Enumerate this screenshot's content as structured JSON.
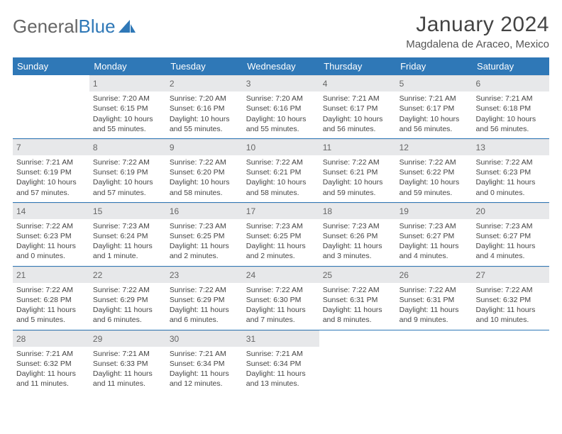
{
  "brand": {
    "word1": "General",
    "word2": "Blue"
  },
  "title": "January 2024",
  "location": "Magdalena de Araceo, Mexico",
  "colors": {
    "accent": "#2f78b7",
    "dayHeaderBg": "#e7e8ea",
    "text": "#444"
  },
  "weekdays": [
    "Sunday",
    "Monday",
    "Tuesday",
    "Wednesday",
    "Thursday",
    "Friday",
    "Saturday"
  ],
  "weeks": [
    [
      {
        "day": "",
        "sunrise": "",
        "sunset": "",
        "daylight1": "",
        "daylight2": ""
      },
      {
        "day": "1",
        "sunrise": "Sunrise: 7:20 AM",
        "sunset": "Sunset: 6:15 PM",
        "daylight1": "Daylight: 10 hours",
        "daylight2": "and 55 minutes."
      },
      {
        "day": "2",
        "sunrise": "Sunrise: 7:20 AM",
        "sunset": "Sunset: 6:16 PM",
        "daylight1": "Daylight: 10 hours",
        "daylight2": "and 55 minutes."
      },
      {
        "day": "3",
        "sunrise": "Sunrise: 7:20 AM",
        "sunset": "Sunset: 6:16 PM",
        "daylight1": "Daylight: 10 hours",
        "daylight2": "and 55 minutes."
      },
      {
        "day": "4",
        "sunrise": "Sunrise: 7:21 AM",
        "sunset": "Sunset: 6:17 PM",
        "daylight1": "Daylight: 10 hours",
        "daylight2": "and 56 minutes."
      },
      {
        "day": "5",
        "sunrise": "Sunrise: 7:21 AM",
        "sunset": "Sunset: 6:17 PM",
        "daylight1": "Daylight: 10 hours",
        "daylight2": "and 56 minutes."
      },
      {
        "day": "6",
        "sunrise": "Sunrise: 7:21 AM",
        "sunset": "Sunset: 6:18 PM",
        "daylight1": "Daylight: 10 hours",
        "daylight2": "and 56 minutes."
      }
    ],
    [
      {
        "day": "7",
        "sunrise": "Sunrise: 7:21 AM",
        "sunset": "Sunset: 6:19 PM",
        "daylight1": "Daylight: 10 hours",
        "daylight2": "and 57 minutes."
      },
      {
        "day": "8",
        "sunrise": "Sunrise: 7:22 AM",
        "sunset": "Sunset: 6:19 PM",
        "daylight1": "Daylight: 10 hours",
        "daylight2": "and 57 minutes."
      },
      {
        "day": "9",
        "sunrise": "Sunrise: 7:22 AM",
        "sunset": "Sunset: 6:20 PM",
        "daylight1": "Daylight: 10 hours",
        "daylight2": "and 58 minutes."
      },
      {
        "day": "10",
        "sunrise": "Sunrise: 7:22 AM",
        "sunset": "Sunset: 6:21 PM",
        "daylight1": "Daylight: 10 hours",
        "daylight2": "and 58 minutes."
      },
      {
        "day": "11",
        "sunrise": "Sunrise: 7:22 AM",
        "sunset": "Sunset: 6:21 PM",
        "daylight1": "Daylight: 10 hours",
        "daylight2": "and 59 minutes."
      },
      {
        "day": "12",
        "sunrise": "Sunrise: 7:22 AM",
        "sunset": "Sunset: 6:22 PM",
        "daylight1": "Daylight: 10 hours",
        "daylight2": "and 59 minutes."
      },
      {
        "day": "13",
        "sunrise": "Sunrise: 7:22 AM",
        "sunset": "Sunset: 6:23 PM",
        "daylight1": "Daylight: 11 hours",
        "daylight2": "and 0 minutes."
      }
    ],
    [
      {
        "day": "14",
        "sunrise": "Sunrise: 7:22 AM",
        "sunset": "Sunset: 6:23 PM",
        "daylight1": "Daylight: 11 hours",
        "daylight2": "and 0 minutes."
      },
      {
        "day": "15",
        "sunrise": "Sunrise: 7:23 AM",
        "sunset": "Sunset: 6:24 PM",
        "daylight1": "Daylight: 11 hours",
        "daylight2": "and 1 minute."
      },
      {
        "day": "16",
        "sunrise": "Sunrise: 7:23 AM",
        "sunset": "Sunset: 6:25 PM",
        "daylight1": "Daylight: 11 hours",
        "daylight2": "and 2 minutes."
      },
      {
        "day": "17",
        "sunrise": "Sunrise: 7:23 AM",
        "sunset": "Sunset: 6:25 PM",
        "daylight1": "Daylight: 11 hours",
        "daylight2": "and 2 minutes."
      },
      {
        "day": "18",
        "sunrise": "Sunrise: 7:23 AM",
        "sunset": "Sunset: 6:26 PM",
        "daylight1": "Daylight: 11 hours",
        "daylight2": "and 3 minutes."
      },
      {
        "day": "19",
        "sunrise": "Sunrise: 7:23 AM",
        "sunset": "Sunset: 6:27 PM",
        "daylight1": "Daylight: 11 hours",
        "daylight2": "and 4 minutes."
      },
      {
        "day": "20",
        "sunrise": "Sunrise: 7:23 AM",
        "sunset": "Sunset: 6:27 PM",
        "daylight1": "Daylight: 11 hours",
        "daylight2": "and 4 minutes."
      }
    ],
    [
      {
        "day": "21",
        "sunrise": "Sunrise: 7:22 AM",
        "sunset": "Sunset: 6:28 PM",
        "daylight1": "Daylight: 11 hours",
        "daylight2": "and 5 minutes."
      },
      {
        "day": "22",
        "sunrise": "Sunrise: 7:22 AM",
        "sunset": "Sunset: 6:29 PM",
        "daylight1": "Daylight: 11 hours",
        "daylight2": "and 6 minutes."
      },
      {
        "day": "23",
        "sunrise": "Sunrise: 7:22 AM",
        "sunset": "Sunset: 6:29 PM",
        "daylight1": "Daylight: 11 hours",
        "daylight2": "and 6 minutes."
      },
      {
        "day": "24",
        "sunrise": "Sunrise: 7:22 AM",
        "sunset": "Sunset: 6:30 PM",
        "daylight1": "Daylight: 11 hours",
        "daylight2": "and 7 minutes."
      },
      {
        "day": "25",
        "sunrise": "Sunrise: 7:22 AM",
        "sunset": "Sunset: 6:31 PM",
        "daylight1": "Daylight: 11 hours",
        "daylight2": "and 8 minutes."
      },
      {
        "day": "26",
        "sunrise": "Sunrise: 7:22 AM",
        "sunset": "Sunset: 6:31 PM",
        "daylight1": "Daylight: 11 hours",
        "daylight2": "and 9 minutes."
      },
      {
        "day": "27",
        "sunrise": "Sunrise: 7:22 AM",
        "sunset": "Sunset: 6:32 PM",
        "daylight1": "Daylight: 11 hours",
        "daylight2": "and 10 minutes."
      }
    ],
    [
      {
        "day": "28",
        "sunrise": "Sunrise: 7:21 AM",
        "sunset": "Sunset: 6:32 PM",
        "daylight1": "Daylight: 11 hours",
        "daylight2": "and 11 minutes."
      },
      {
        "day": "29",
        "sunrise": "Sunrise: 7:21 AM",
        "sunset": "Sunset: 6:33 PM",
        "daylight1": "Daylight: 11 hours",
        "daylight2": "and 11 minutes."
      },
      {
        "day": "30",
        "sunrise": "Sunrise: 7:21 AM",
        "sunset": "Sunset: 6:34 PM",
        "daylight1": "Daylight: 11 hours",
        "daylight2": "and 12 minutes."
      },
      {
        "day": "31",
        "sunrise": "Sunrise: 7:21 AM",
        "sunset": "Sunset: 6:34 PM",
        "daylight1": "Daylight: 11 hours",
        "daylight2": "and 13 minutes."
      },
      {
        "day": "",
        "sunrise": "",
        "sunset": "",
        "daylight1": "",
        "daylight2": ""
      },
      {
        "day": "",
        "sunrise": "",
        "sunset": "",
        "daylight1": "",
        "daylight2": ""
      },
      {
        "day": "",
        "sunrise": "",
        "sunset": "",
        "daylight1": "",
        "daylight2": ""
      }
    ]
  ]
}
